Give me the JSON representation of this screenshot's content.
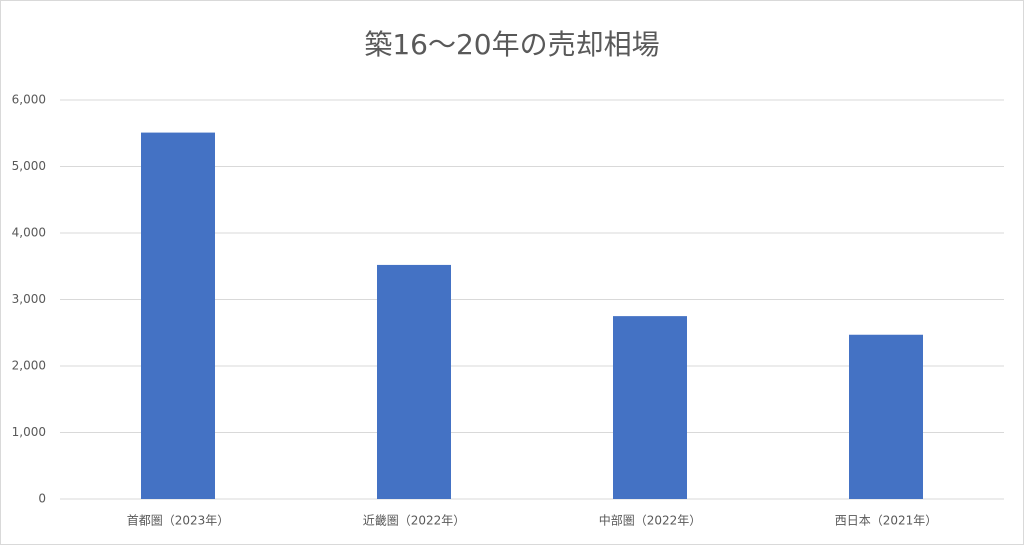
{
  "chart_data": {
    "type": "bar",
    "title": "築16〜20年の売却相場",
    "categories": [
      "首都圏（2023年）",
      "近畿圏（2022年）",
      "中部圏（2022年）",
      "西日本（2021年）"
    ],
    "values": [
      5510,
      3520,
      2750,
      2470
    ],
    "color": "#4472c4",
    "ylim": [
      0,
      6000
    ],
    "yticks": [
      0,
      {
        "value": 1000,
        "label": "1,000"
      },
      {
        "value": 2000,
        "label": "2,000"
      },
      {
        "value": 3000,
        "label": "3,000"
      },
      {
        "value": 4000,
        "label": "4,000"
      },
      {
        "value": 5000,
        "label": "5,000"
      },
      {
        "value": 6000,
        "label": "6,000"
      }
    ],
    "grid": true
  }
}
